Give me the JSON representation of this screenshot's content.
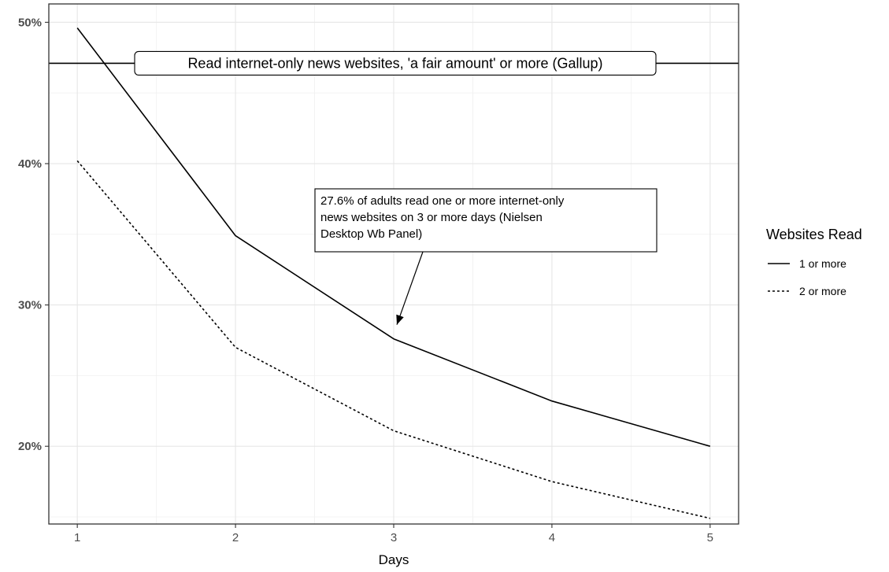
{
  "chart_data": {
    "type": "line",
    "xlabel": "Days",
    "ylabel": "",
    "x": [
      1,
      2,
      3,
      4,
      5
    ],
    "xticks": [
      "1",
      "2",
      "3",
      "4",
      "5"
    ],
    "xlim": [
      0.82,
      5.18
    ],
    "ylim": [
      14.5,
      51.3
    ],
    "yticks": [
      {
        "value": 20,
        "label": "20%"
      },
      {
        "value": 30,
        "label": "30%"
      },
      {
        "value": 40,
        "label": "40%"
      },
      {
        "value": 50,
        "label": "50%"
      }
    ],
    "series": [
      {
        "name": "1 or more",
        "values": [
          49.6,
          34.9,
          27.6,
          23.2,
          20.0
        ],
        "dash": "solid"
      },
      {
        "name": "2 or more",
        "values": [
          40.2,
          27.0,
          21.1,
          17.5,
          14.9
        ],
        "dash": "dotted"
      }
    ],
    "legend": {
      "title": "Websites Read",
      "position": "right"
    },
    "grid": true,
    "reference_line": {
      "y": 47.1,
      "label": "Read internet-only news websites, 'a fair amount' or more (Gallup)"
    },
    "annotation": {
      "lines": [
        "27.6% of adults read one or more internet-only",
        "news websites on 3 or more days (Nielsen",
        "Desktop Wb Panel)"
      ],
      "target_x": 3,
      "target_y": 27.6
    }
  }
}
